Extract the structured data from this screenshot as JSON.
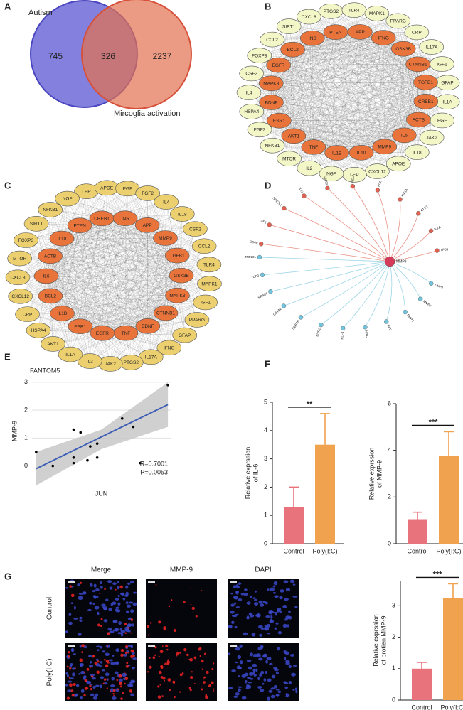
{
  "panel_labels": [
    "A",
    "B",
    "C",
    "D",
    "E",
    "F",
    "G"
  ],
  "venn": {
    "sets": [
      "Autism",
      "Mircoglia activation"
    ],
    "counts": [
      745,
      326,
      2237
    ],
    "colors": [
      "#6d6ad8",
      "#e2704f"
    ]
  },
  "networks": [
    {
      "inner": [
        "INS",
        "PTEN",
        "APP",
        "IFNG",
        "GSK3B",
        "CTNNB1",
        "TGFB1",
        "CREB1",
        "ACTB",
        "IL6",
        "MMP9",
        "IL10",
        "IL1B",
        "TNF",
        "AKT1",
        "ESR1",
        "BDNF",
        "MAPK3",
        "EGFR",
        "BCL2"
      ],
      "outer": [
        "CXCL8",
        "PTGS2",
        "TLR4",
        "MAPK1",
        "PPARG",
        "CRP",
        "IL17A",
        "IGF1",
        "GFAP",
        "IL1A",
        "EGF",
        "JAK2",
        "IL18",
        "APOE",
        "CXCL12",
        "LEP",
        "NGF",
        "IL2",
        "MTOR",
        "NFKB1",
        "FGF2",
        "HSPA4",
        "IL4",
        "CSF2",
        "FOXP3",
        "CCL2",
        "SIRT1"
      ],
      "inner_color": "#e8743b",
      "outer_color": "#f3f6c6"
    },
    {
      "inner": [
        "CREB1",
        "INS",
        "APP",
        "MMP9",
        "TGFB1",
        "GSK3B",
        "MAPK3",
        "CTNNB1",
        "BDNF",
        "TNF",
        "EGFR",
        "ESR1",
        "IL1B",
        "BCL2",
        "IL6",
        "ACTB",
        "IL10",
        "PTEN"
      ],
      "outer": [
        "LEP",
        "APOE",
        "EGF",
        "FGF2",
        "IL4",
        "IL18",
        "CSF2",
        "CCL2",
        "TLR4",
        "MAPK1",
        "IGF1",
        "PPARG",
        "GFAP",
        "IFNG",
        "IL17A",
        "PTGS2",
        "JAK2",
        "IL2",
        "IL1A",
        "AKT1",
        "HSPA4",
        "CRP",
        "CXCL12",
        "CXCL8",
        "MTOR",
        "FOXP3",
        "SIRT1",
        "NFKB1",
        "NGF"
      ],
      "inner_color": "#e8743b",
      "outer_color": "#ecd070"
    }
  ],
  "regulatory_network": {
    "hub": "MMP9",
    "upregulators": [
      "CD40",
      "SP1",
      "NFE2L2",
      "JUN",
      "STAT3",
      "RELA",
      "FOS",
      "HIF1A",
      "ETS1",
      "IL1A",
      "TP53"
    ],
    "downregulators": [
      "ZNF281",
      "TCF3",
      "NR3C1",
      "GATA2",
      "CEBPB",
      "EGR1",
      "KLF4",
      "MYC",
      "SPI1",
      "BMP2",
      "MMP2",
      "TIMP1"
    ],
    "up_color": "#e0614f",
    "down_color": "#72c3dc"
  },
  "chart_data": [
    {
      "type": "scatter",
      "title": "FANTOM5",
      "xlabel": "JUN",
      "ylabel": "MMP-9",
      "x": [
        0.3,
        1.5,
        3,
        3.5,
        3,
        3,
        4,
        4.2,
        4.7,
        4.7,
        6.5,
        7.3,
        7.8,
        9.8
      ],
      "values": [
        0.5,
        0,
        1.3,
        1.2,
        0.3,
        0.1,
        0.2,
        0.7,
        0.8,
        0.3,
        1.7,
        1.4,
        0.1,
        2.9
      ],
      "xlim": [
        0,
        10
      ],
      "ylim": [
        -0.7,
        3.2
      ],
      "yticks": [
        0,
        1,
        2,
        3
      ],
      "grid": true,
      "color": "#000000",
      "fit": {
        "x": [
          0.3,
          5,
          9.8
        ],
        "values": [
          -0.1,
          1.04,
          2.2
        ],
        "lower": [
          -0.7,
          0.6,
          1.4
        ],
        "upper": [
          0.5,
          1.3,
          3.0
        ],
        "color": "#3f5fb5",
        "band_color": "#c4c4c4"
      },
      "annotations": [
        "R=0.7001",
        "P=0.0053"
      ]
    },
    {
      "type": "bar",
      "ylabel": [
        "Relative exprssion",
        "of IL-6"
      ],
      "categories": [
        "Control",
        "Poly(I:C)"
      ],
      "values": [
        1.3,
        3.5
      ],
      "errors": [
        0.7,
        1.1
      ],
      "colors": [
        "#e8737d",
        "#f0a24e"
      ],
      "ylim": [
        0,
        5
      ],
      "yticks": [
        0,
        1,
        2,
        3,
        4,
        5
      ],
      "significance": "**"
    },
    {
      "type": "bar",
      "ylabel": [
        "Relative exprssion",
        "of MMP-9"
      ],
      "categories": [
        "Control",
        "Poly(I:C)"
      ],
      "values": [
        1.05,
        3.75
      ],
      "errors": [
        0.3,
        1.05
      ],
      "colors": [
        "#e8737d",
        "#f0a24e"
      ],
      "ylim": [
        0,
        6
      ],
      "yticks": [
        0,
        2,
        4,
        6
      ],
      "significance": "***"
    },
    {
      "type": "bar",
      "ylabel": [
        "Relative exprssion",
        "of protien MMP-9"
      ],
      "categories": [
        "Control",
        "Poly(I:C)"
      ],
      "values": [
        1.0,
        3.25
      ],
      "errors": [
        0.2,
        0.45
      ],
      "colors": [
        "#e8737d",
        "#f0a24e"
      ],
      "ylim": [
        0,
        3.8
      ],
      "yticks": [
        0,
        1,
        2,
        3
      ],
      "significance": "***"
    }
  ],
  "immunofluorescence": {
    "columns": [
      "Merge",
      "MMP-9",
      "DAPI"
    ],
    "rows": [
      "Control",
      "Poly(I:C)"
    ]
  }
}
